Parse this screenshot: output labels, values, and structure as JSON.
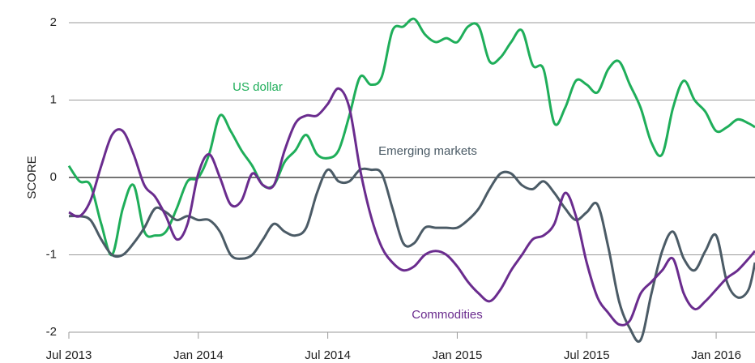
{
  "chart_data": {
    "type": "line",
    "ylabel": "SCORE",
    "x": [
      0,
      0.5,
      1,
      1.5,
      2,
      2.5,
      3,
      3.5,
      4,
      4.5,
      5,
      5.5,
      6,
      6.5,
      7,
      7.5,
      8,
      8.5,
      9,
      9.5,
      10,
      10.5,
      11,
      11.5,
      12,
      12.5,
      13,
      13.5,
      14,
      14.5,
      15,
      15.5,
      16,
      16.5,
      17,
      17.5,
      18,
      18.5,
      19,
      19.5,
      20,
      20.5,
      21,
      21.5,
      22,
      22.5,
      23,
      23.5,
      24,
      24.5,
      25,
      25.5,
      26,
      26.5,
      27,
      27.5,
      28,
      28.5,
      29,
      29.5,
      30,
      30.5,
      31,
      31.5,
      31.8
    ],
    "xlim": [
      0,
      31.8
    ],
    "xticks": [
      {
        "value": 0,
        "label": "Jul 2013"
      },
      {
        "value": 6,
        "label": "Jan 2014"
      },
      {
        "value": 12,
        "label": "Jul 2014"
      },
      {
        "value": 18,
        "label": "Jan 2015"
      },
      {
        "value": 24,
        "label": "Jul 2015"
      },
      {
        "value": 30,
        "label": "Jan 2016"
      }
    ],
    "ylim": [
      -2,
      2.1
    ],
    "yticks": [
      -2,
      -1,
      0,
      1,
      2
    ],
    "grid": true,
    "series": [
      {
        "name": "US dollar",
        "color": "#1fae5a",
        "values": [
          0.15,
          -0.05,
          -0.1,
          -0.6,
          -1.0,
          -0.4,
          -0.1,
          -0.7,
          -0.75,
          -0.7,
          -0.4,
          -0.05,
          0.0,
          0.3,
          0.8,
          0.6,
          0.35,
          0.15,
          -0.1,
          -0.1,
          0.2,
          0.35,
          0.55,
          0.3,
          0.25,
          0.35,
          0.8,
          1.3,
          1.2,
          1.3,
          1.9,
          1.95,
          2.05,
          1.85,
          1.75,
          1.8,
          1.75,
          1.95,
          1.95,
          1.5,
          1.55,
          1.75,
          1.9,
          1.45,
          1.4,
          0.7,
          0.9,
          1.25,
          1.2,
          1.1,
          1.4,
          1.5,
          1.2,
          0.9,
          0.45,
          0.3,
          0.9,
          1.25,
          1.0,
          0.85,
          0.6,
          0.65,
          0.75,
          0.7,
          0.65
        ]
      },
      {
        "name": "Emerging markets",
        "color": "#4b5b66",
        "values": [
          -0.5,
          -0.5,
          -0.55,
          -0.8,
          -1.0,
          -1.0,
          -0.85,
          -0.65,
          -0.4,
          -0.45,
          -0.55,
          -0.5,
          -0.55,
          -0.55,
          -0.7,
          -1.0,
          -1.05,
          -1.0,
          -0.8,
          -0.6,
          -0.7,
          -0.75,
          -0.65,
          -0.2,
          0.1,
          -0.05,
          -0.05,
          0.1,
          0.1,
          0.05,
          -0.4,
          -0.85,
          -0.85,
          -0.65,
          -0.65,
          -0.65,
          -0.65,
          -0.55,
          -0.4,
          -0.15,
          0.05,
          0.05,
          -0.1,
          -0.15,
          -0.05,
          -0.2,
          -0.4,
          -0.55,
          -0.45,
          -0.35,
          -0.9,
          -1.6,
          -1.95,
          -2.1,
          -1.5,
          -0.95,
          -0.7,
          -1.05,
          -1.2,
          -0.95,
          -0.75,
          -1.35,
          -1.55,
          -1.45,
          -1.1
        ]
      },
      {
        "name": "Commodities",
        "color": "#6a2c8e",
        "values": [
          -0.45,
          -0.5,
          -0.3,
          0.15,
          0.55,
          0.6,
          0.3,
          -0.1,
          -0.25,
          -0.5,
          -0.8,
          -0.6,
          0.05,
          0.3,
          0.0,
          -0.35,
          -0.3,
          0.05,
          -0.1,
          -0.1,
          0.35,
          0.7,
          0.8,
          0.8,
          0.95,
          1.15,
          0.9,
          0.1,
          -0.5,
          -0.9,
          -1.1,
          -1.2,
          -1.15,
          -1.0,
          -0.95,
          -1.0,
          -1.15,
          -1.35,
          -1.5,
          -1.6,
          -1.45,
          -1.2,
          -1.0,
          -0.8,
          -0.75,
          -0.6,
          -0.2,
          -0.5,
          -1.1,
          -1.55,
          -1.75,
          -1.9,
          -1.85,
          -1.5,
          -1.35,
          -1.2,
          -1.05,
          -1.5,
          -1.7,
          -1.6,
          -1.45,
          -1.3,
          -1.2,
          -1.05,
          -0.95
        ]
      }
    ]
  }
}
